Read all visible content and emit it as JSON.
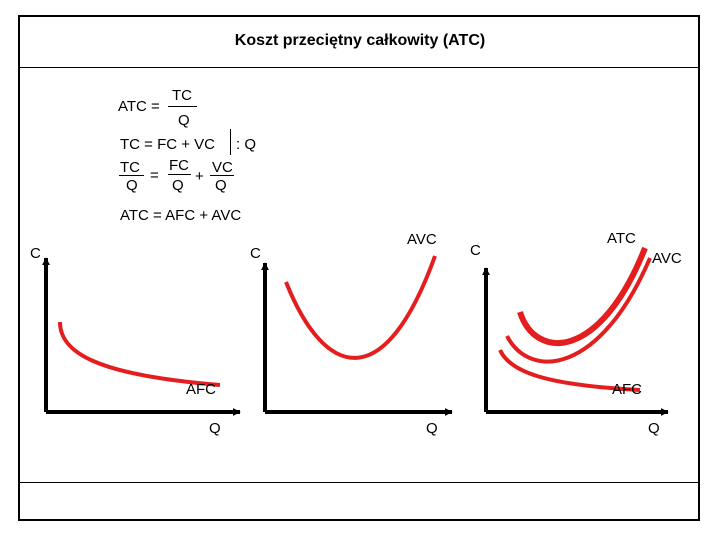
{
  "title": "Koszt  przeciętny  całkowity  (ATC)",
  "formulas": {
    "f1_lhs": "ATC =",
    "f1_num": "TC",
    "f1_den": "Q",
    "f2_lhs": "TC = FC + VC",
    "f2_rhs": ": Q",
    "f3_a_num": "TC",
    "f3_a_den": "Q",
    "f3_eq": "=",
    "f3_b_num": "FC",
    "f3_b_den": "Q",
    "f3_plus": "+",
    "f3_c_num": "VC",
    "f3_c_den": "Q",
    "f4": "ATC = AFC + AVC"
  },
  "plots": [
    {
      "y_label": "C",
      "x_label": "Q",
      "curves": [
        "AFC"
      ]
    },
    {
      "y_label": "C",
      "x_label": "Q",
      "curves": [
        "AVC"
      ]
    },
    {
      "y_label": "C",
      "x_label": "Q",
      "curves": [
        "ATC",
        "AVC",
        "AFC"
      ]
    }
  ],
  "colors": {
    "curve": "#e41e1e",
    "axis": "#000000",
    "text": "#000000"
  }
}
